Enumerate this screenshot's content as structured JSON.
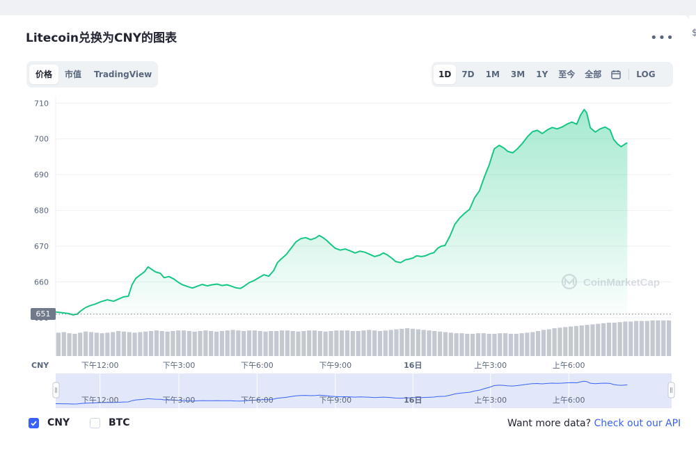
{
  "title": "Litecoin兑换为CNY的图表",
  "more_icon": "more-horizontal-icon",
  "view_tabs": [
    {
      "label": "价格",
      "active": true
    },
    {
      "label": "市值",
      "active": false
    },
    {
      "label": "TradingView",
      "active": false
    }
  ],
  "range_tabs": [
    {
      "label": "1D",
      "active": true
    },
    {
      "label": "7D",
      "active": false
    },
    {
      "label": "1M",
      "active": false
    },
    {
      "label": "3M",
      "active": false
    },
    {
      "label": "1Y",
      "active": false
    },
    {
      "label": "至今",
      "active": false
    },
    {
      "label": "全部",
      "active": false
    }
  ],
  "calendar_icon": "calendar-icon",
  "log_label": "LOG",
  "current_price_tag": "651",
  "watermark": "CoinMarketCap",
  "currency_axis_label": "CNY",
  "colors": {
    "up": "#16c784",
    "down": "#ea3943",
    "accent": "#3861fb",
    "volume": "#c4c8d0"
  },
  "chart_data": {
    "type": "line",
    "ylim": [
      649,
      712
    ],
    "yticks": [
      "710",
      "700",
      "690",
      "680",
      "670",
      "660",
      "650"
    ],
    "x_range": [
      0,
      1000
    ],
    "xticks": [
      {
        "x": 72,
        "label": "下午12:00"
      },
      {
        "x": 200,
        "label": "下午3:00"
      },
      {
        "x": 327,
        "label": "下午6:00"
      },
      {
        "x": 454,
        "label": "下午9:00"
      },
      {
        "x": 580,
        "label": "16日"
      },
      {
        "x": 706,
        "label": "上午3:00"
      },
      {
        "x": 833,
        "label": "上午6:00"
      }
    ],
    "baseline": 651,
    "series": [
      {
        "values": [
          [
            0,
            651.6
          ],
          [
            20,
            651.2
          ],
          [
            28,
            650.8
          ],
          [
            35,
            651.0
          ],
          [
            40,
            651.8
          ],
          [
            48,
            652.8
          ],
          [
            56,
            653.4
          ],
          [
            64,
            653.8
          ],
          [
            74,
            654.5
          ],
          [
            84,
            655.0
          ],
          [
            94,
            654.6
          ],
          [
            102,
            655.2
          ],
          [
            110,
            655.8
          ],
          [
            118,
            656.0
          ],
          [
            124,
            659.2
          ],
          [
            130,
            661.0
          ],
          [
            136,
            661.8
          ],
          [
            144,
            662.8
          ],
          [
            150,
            664.2
          ],
          [
            156,
            663.5
          ],
          [
            162,
            662.8
          ],
          [
            170,
            662.4
          ],
          [
            176,
            661.2
          ],
          [
            184,
            661.5
          ],
          [
            192,
            660.8
          ],
          [
            200,
            659.8
          ],
          [
            206,
            659.2
          ],
          [
            214,
            658.7
          ],
          [
            222,
            658.3
          ],
          [
            230,
            658.8
          ],
          [
            238,
            659.3
          ],
          [
            246,
            658.9
          ],
          [
            254,
            659.2
          ],
          [
            262,
            659.4
          ],
          [
            270,
            659.0
          ],
          [
            278,
            659.2
          ],
          [
            284,
            658.9
          ],
          [
            292,
            658.4
          ],
          [
            300,
            658.2
          ],
          [
            306,
            658.8
          ],
          [
            314,
            659.8
          ],
          [
            322,
            660.4
          ],
          [
            330,
            661.2
          ],
          [
            338,
            662.0
          ],
          [
            346,
            661.6
          ],
          [
            354,
            663.2
          ],
          [
            360,
            665.4
          ],
          [
            366,
            666.4
          ],
          [
            374,
            667.6
          ],
          [
            382,
            669.4
          ],
          [
            390,
            671.2
          ],
          [
            398,
            672.1
          ],
          [
            406,
            672.4
          ],
          [
            414,
            671.8
          ],
          [
            422,
            672.3
          ],
          [
            428,
            673.0
          ],
          [
            434,
            672.4
          ],
          [
            440,
            671.6
          ],
          [
            446,
            670.6
          ],
          [
            454,
            669.4
          ],
          [
            462,
            668.9
          ],
          [
            470,
            669.2
          ],
          [
            478,
            668.7
          ],
          [
            486,
            668.1
          ],
          [
            494,
            668.6
          ],
          [
            502,
            668.3
          ],
          [
            510,
            667.7
          ],
          [
            518,
            667.1
          ],
          [
            526,
            667.5
          ],
          [
            532,
            668.1
          ],
          [
            538,
            667.6
          ],
          [
            546,
            666.6
          ],
          [
            552,
            665.7
          ],
          [
            560,
            665.4
          ],
          [
            568,
            666.2
          ],
          [
            574,
            666.4
          ],
          [
            580,
            666.7
          ],
          [
            586,
            667.3
          ],
          [
            594,
            667.1
          ],
          [
            600,
            667.3
          ],
          [
            608,
            667.9
          ],
          [
            614,
            668.2
          ],
          [
            620,
            669.4
          ],
          [
            626,
            670.0
          ],
          [
            632,
            670.2
          ],
          [
            640,
            672.8
          ],
          [
            648,
            676.1
          ],
          [
            656,
            677.9
          ],
          [
            664,
            679.2
          ],
          [
            672,
            680.3
          ],
          [
            680,
            683.5
          ],
          [
            688,
            685.5
          ],
          [
            696,
            689.4
          ],
          [
            704,
            692.8
          ],
          [
            712,
            697.2
          ],
          [
            720,
            698.2
          ],
          [
            728,
            697.4
          ],
          [
            734,
            696.5
          ],
          [
            742,
            696.1
          ],
          [
            750,
            697.3
          ],
          [
            758,
            698.8
          ],
          [
            766,
            700.6
          ],
          [
            774,
            702.0
          ],
          [
            782,
            702.4
          ],
          [
            790,
            701.5
          ],
          [
            798,
            702.5
          ],
          [
            806,
            703.2
          ],
          [
            814,
            702.8
          ],
          [
            822,
            703.3
          ],
          [
            830,
            704.1
          ],
          [
            838,
            704.7
          ],
          [
            846,
            704.1
          ],
          [
            852,
            706.6
          ],
          [
            858,
            708.2
          ],
          [
            862,
            707.3
          ],
          [
            868,
            703.1
          ],
          [
            876,
            701.9
          ],
          [
            884,
            702.8
          ],
          [
            892,
            703.3
          ],
          [
            900,
            702.5
          ],
          [
            906,
            699.8
          ],
          [
            912,
            698.6
          ],
          [
            918,
            697.8
          ],
          [
            924,
            698.5
          ],
          [
            928,
            698.9
          ]
        ]
      }
    ],
    "volume": [
      0.42,
      0.43,
      0.41,
      0.4,
      0.42,
      0.44,
      0.43,
      0.42,
      0.41,
      0.42,
      0.43,
      0.45,
      0.44,
      0.43,
      0.42,
      0.43,
      0.44,
      0.45,
      0.46,
      0.45,
      0.44,
      0.45,
      0.46,
      0.46,
      0.45,
      0.44,
      0.45,
      0.46,
      0.45,
      0.44,
      0.45,
      0.46,
      0.47,
      0.46,
      0.45,
      0.46,
      0.46,
      0.45,
      0.44,
      0.45,
      0.45,
      0.46,
      0.46,
      0.45,
      0.44,
      0.45,
      0.46,
      0.46,
      0.45,
      0.44,
      0.45,
      0.46,
      0.46,
      0.46,
      0.45,
      0.45,
      0.46,
      0.47,
      0.46,
      0.45,
      0.46,
      0.47,
      0.48,
      0.49,
      0.5,
      0.49,
      0.48,
      0.47,
      0.46,
      0.45,
      0.44,
      0.43,
      0.42,
      0.41,
      0.41,
      0.4,
      0.4,
      0.41,
      0.41,
      0.4,
      0.4,
      0.41,
      0.41,
      0.4,
      0.4,
      0.41,
      0.42,
      0.43,
      0.45,
      0.47,
      0.48,
      0.5,
      0.51,
      0.52,
      0.53,
      0.54,
      0.55,
      0.56,
      0.57,
      0.58,
      0.59,
      0.6,
      0.6,
      0.61,
      0.62,
      0.62,
      0.63,
      0.63,
      0.63,
      0.64,
      0.64,
      0.64,
      0.64
    ],
    "navigator_x_labels": [
      "下午12:00",
      "下午3:00",
      "下午6:00",
      "下午9:00",
      "16日",
      "上午3:00",
      "上午6:00"
    ]
  },
  "currency_options": [
    {
      "label": "CNY",
      "checked": true
    },
    {
      "label": "BTC",
      "checked": false
    }
  ],
  "api_text": "Want more data?",
  "api_link": "Check out our API"
}
